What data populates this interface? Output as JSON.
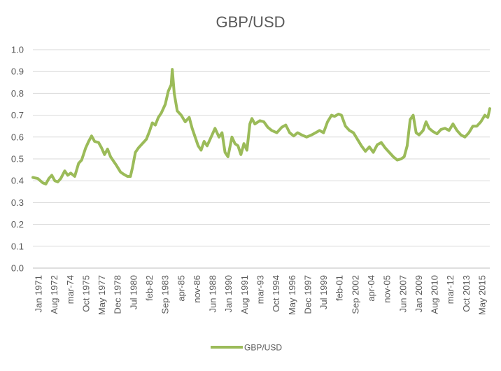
{
  "chart_data": {
    "type": "line",
    "title": "GBP/USD",
    "xlabel": "",
    "ylabel": "",
    "ylim": [
      0.0,
      1.0
    ],
    "y_ticks": [
      "0.0",
      "0.1",
      "0.2",
      "0.3",
      "0.4",
      "0.5",
      "0.6",
      "0.7",
      "0.8",
      "0.9",
      "1.0"
    ],
    "x_ticks": [
      "Jan 1971",
      "Aug 1972",
      "mar-74",
      "Oct 1975",
      "May 1977",
      "Dec 1978",
      "Jul 1980",
      "feb-82",
      "Sep 1983",
      "apr-85",
      "nov-86",
      "Jun 1988",
      "Jan 1990",
      "Aug 1991",
      "mar-93",
      "Oct 1994",
      "May 1996",
      "Dec 1997",
      "Jul 1999",
      "feb-01",
      "Sep 2002",
      "apr-04",
      "nov-05",
      "Jun 2007",
      "Jan 2009",
      "Aug 2010",
      "mar-12",
      "Oct 2013",
      "May 2015"
    ],
    "grid": true,
    "legend_position": "bottom",
    "colors": {
      "series": "#9bbb59",
      "grid": "#d9d9d9",
      "text": "#595959"
    },
    "series": [
      {
        "name": "GBP/USD",
        "x": [
          1971.0,
          1971.5,
          1972.0,
          1972.3,
          1972.6,
          1972.9,
          1973.2,
          1973.5,
          1973.8,
          1974.2,
          1974.5,
          1974.8,
          1975.2,
          1975.6,
          1975.9,
          1976.3,
          1976.6,
          1976.9,
          1977.2,
          1977.6,
          1977.9,
          1978.2,
          1978.5,
          1978.8,
          1979.1,
          1979.4,
          1979.8,
          1980.1,
          1980.5,
          1980.8,
          1981.0,
          1981.3,
          1981.6,
          1981.8,
          1982.1,
          1982.4,
          1982.7,
          1983.0,
          1983.3,
          1983.6,
          1983.9,
          1984.3,
          1984.6,
          1984.9,
          1985.0,
          1985.2,
          1985.5,
          1985.9,
          1986.3,
          1986.7,
          1987.0,
          1987.3,
          1987.6,
          1987.9,
          1988.2,
          1988.5,
          1988.9,
          1989.3,
          1989.7,
          1990.0,
          1990.3,
          1990.6,
          1991.0,
          1991.3,
          1991.6,
          1991.9,
          1992.2,
          1992.5,
          1992.8,
          1993.0,
          1993.3,
          1993.8,
          1994.2,
          1994.6,
          1995.0,
          1995.5,
          1996.0,
          1996.4,
          1996.8,
          1997.2,
          1997.6,
          1998.0,
          1998.5,
          1999.0,
          1999.4,
          1999.8,
          2000.2,
          2000.6,
          2001.0,
          2001.3,
          2001.7,
          2002.0,
          2002.4,
          2002.8,
          2003.2,
          2003.6,
          2004.0,
          2004.4,
          2004.8,
          2005.2,
          2005.6,
          2006.0,
          2006.4,
          2006.8,
          2007.2,
          2007.6,
          2008.0,
          2008.3,
          2008.6,
          2008.9,
          2009.2,
          2009.5,
          2009.8,
          2010.2,
          2010.5,
          2010.8,
          2011.2,
          2011.6,
          2012.0,
          2012.4,
          2012.8,
          2013.2,
          2013.6,
          2014.0,
          2014.4,
          2014.8,
          2015.2,
          2015.6,
          2016.0,
          2016.4,
          2016.7,
          2016.9
        ],
        "values": [
          0.415,
          0.41,
          0.39,
          0.385,
          0.41,
          0.425,
          0.4,
          0.395,
          0.41,
          0.445,
          0.425,
          0.435,
          0.42,
          0.48,
          0.495,
          0.55,
          0.58,
          0.605,
          0.58,
          0.575,
          0.55,
          0.52,
          0.545,
          0.51,
          0.49,
          0.47,
          0.44,
          0.43,
          0.42,
          0.42,
          0.46,
          0.53,
          0.55,
          0.56,
          0.575,
          0.59,
          0.625,
          0.665,
          0.655,
          0.69,
          0.71,
          0.75,
          0.81,
          0.84,
          0.91,
          0.8,
          0.72,
          0.7,
          0.67,
          0.69,
          0.64,
          0.6,
          0.56,
          0.54,
          0.58,
          0.56,
          0.6,
          0.64,
          0.6,
          0.62,
          0.53,
          0.51,
          0.6,
          0.57,
          0.56,
          0.52,
          0.57,
          0.54,
          0.66,
          0.685,
          0.66,
          0.675,
          0.67,
          0.645,
          0.63,
          0.62,
          0.645,
          0.655,
          0.62,
          0.605,
          0.62,
          0.61,
          0.6,
          0.61,
          0.62,
          0.63,
          0.62,
          0.67,
          0.7,
          0.695,
          0.705,
          0.7,
          0.65,
          0.63,
          0.62,
          0.59,
          0.56,
          0.535,
          0.555,
          0.53,
          0.565,
          0.575,
          0.55,
          0.53,
          0.51,
          0.495,
          0.5,
          0.51,
          0.56,
          0.68,
          0.7,
          0.62,
          0.61,
          0.63,
          0.67,
          0.64,
          0.625,
          0.615,
          0.635,
          0.64,
          0.63,
          0.66,
          0.63,
          0.61,
          0.6,
          0.62,
          0.65,
          0.65,
          0.67,
          0.7,
          0.69,
          0.73
        ]
      }
    ]
  }
}
